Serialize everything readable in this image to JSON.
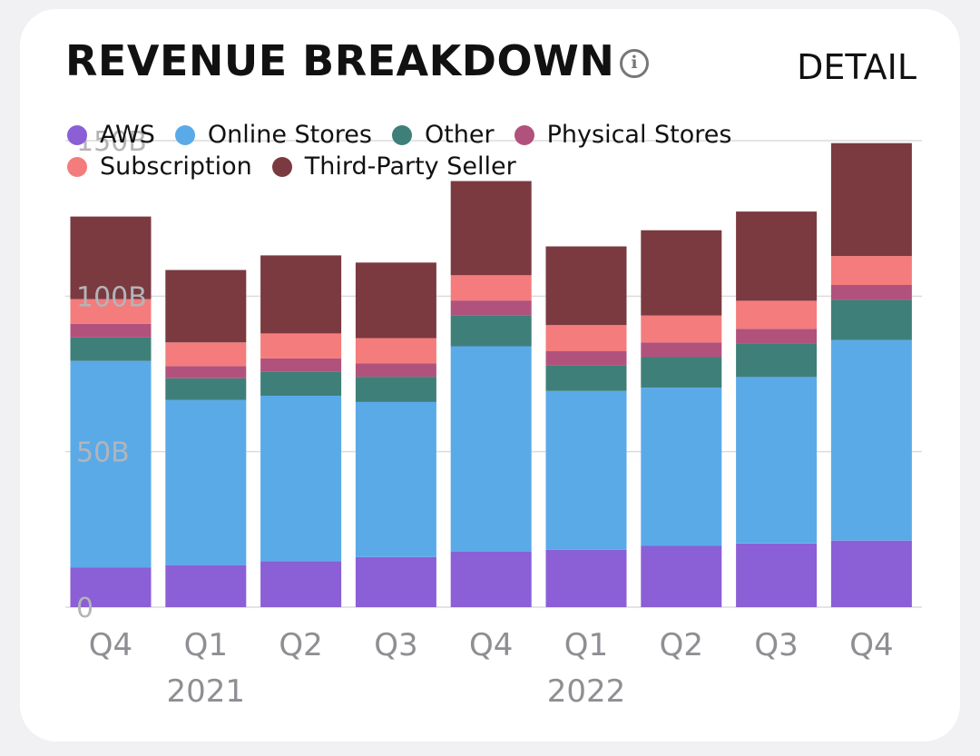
{
  "card": {
    "title": "REVENUE BREAKDOWN",
    "info_icon": "info-circle-icon",
    "detail_label": "DETAIL"
  },
  "chart_data": {
    "type": "bar",
    "stacked": true,
    "categories": [
      "Q4",
      "Q1",
      "Q2",
      "Q3",
      "Q4",
      "Q1",
      "Q2",
      "Q3",
      "Q4"
    ],
    "year_labels": [
      {
        "label": "2021",
        "category_index": 1
      },
      {
        "label": "2022",
        "category_index": 5
      }
    ],
    "y_ticks": [
      {
        "value": 0,
        "label": "0"
      },
      {
        "value": 50,
        "label": "50B"
      },
      {
        "value": 100,
        "label": "100B"
      },
      {
        "value": 150,
        "label": "150B"
      }
    ],
    "ylim": [
      0,
      150
    ],
    "grid": true,
    "legend_position": "top-left",
    "series": [
      {
        "name": "AWS",
        "color": "#8b5fd6",
        "values": [
          12.7,
          13.5,
          14.8,
          16.1,
          17.8,
          18.4,
          19.7,
          20.5,
          21.4
        ]
      },
      {
        "name": "Online Stores",
        "color": "#5aaae8",
        "values": [
          66.5,
          53.1,
          53.2,
          49.9,
          66.1,
          51.1,
          50.9,
          53.5,
          64.5
        ]
      },
      {
        "name": "Other",
        "color": "#3f7f79",
        "values": [
          7.5,
          7.0,
          7.8,
          8.1,
          10.0,
          8.2,
          9.8,
          10.8,
          12.9
        ]
      },
      {
        "name": "Physical Stores",
        "color": "#b1527d",
        "values": [
          4.4,
          3.9,
          4.2,
          4.3,
          4.7,
          4.6,
          4.7,
          4.7,
          4.8
        ]
      },
      {
        "name": "Subscription",
        "color": "#f47c7c",
        "values": [
          7.9,
          7.6,
          8.0,
          8.1,
          8.1,
          8.4,
          8.7,
          9.0,
          9.3
        ]
      },
      {
        "name": "Third-Party Seller",
        "color": "#7a3a40",
        "values": [
          26.6,
          23.3,
          25.1,
          24.3,
          30.3,
          25.3,
          27.4,
          28.7,
          36.3
        ]
      }
    ]
  }
}
